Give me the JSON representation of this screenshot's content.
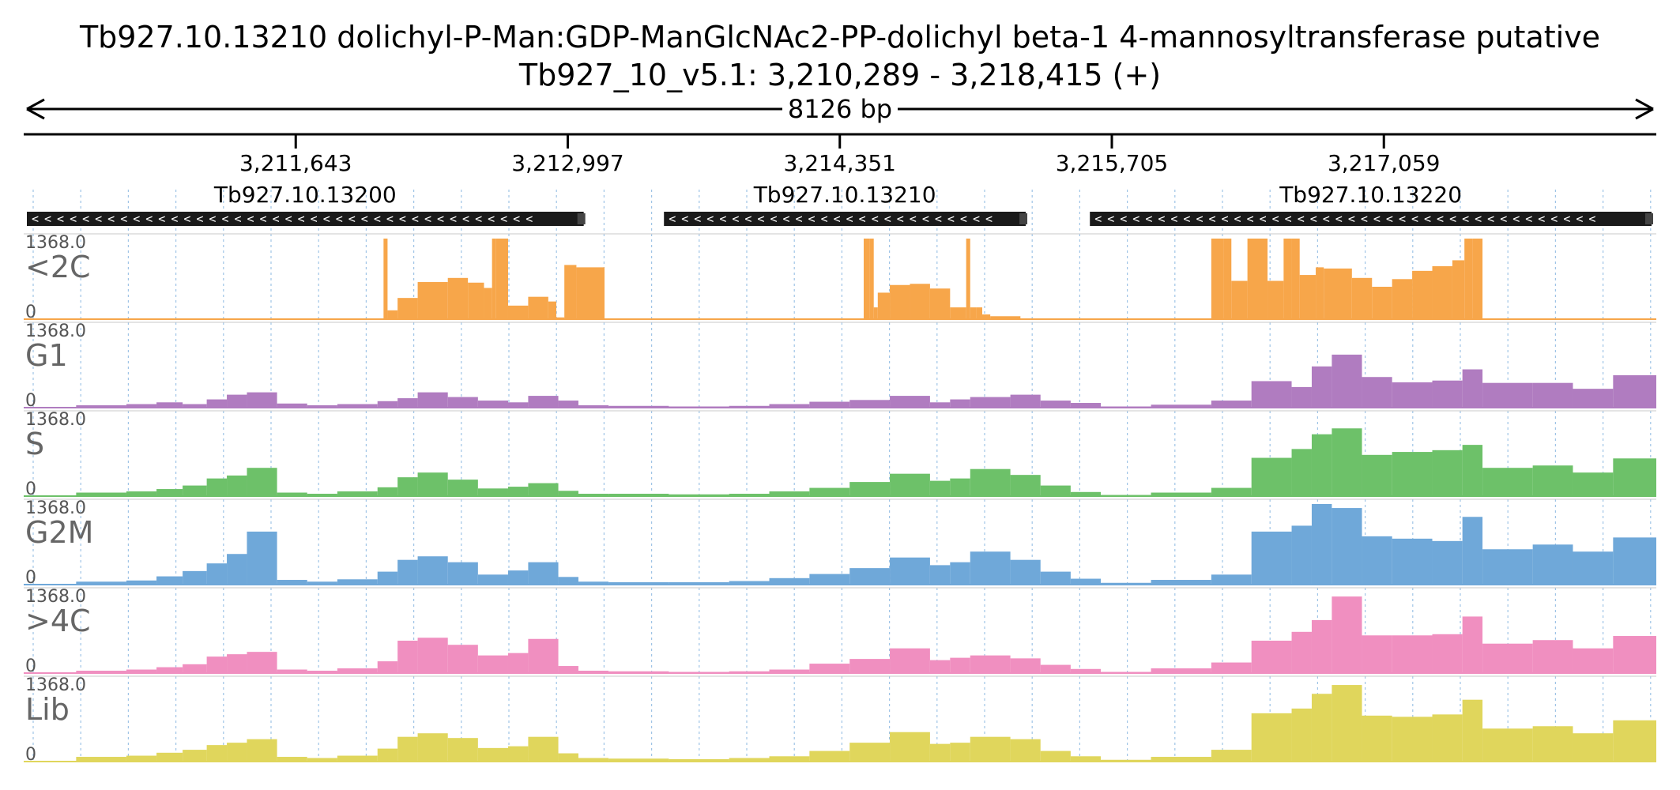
{
  "header": {
    "title": "Tb927.10.13210  dolichyl-P-Man:GDP-ManGlcNAc2-PP-dolichyl beta-1 4-mannosyltransferase  putative",
    "locus": "Tb927_10_v5.1: 3,210,289 - 3,218,415 (+)",
    "span_label": "8126 bp"
  },
  "axis": {
    "start": 3210289,
    "end": 3218415,
    "ticks": [
      {
        "value": 3211643,
        "label": "3,211,643"
      },
      {
        "value": 3212997,
        "label": "3,212,997"
      },
      {
        "value": 3214351,
        "label": "3,214,351"
      },
      {
        "value": 3215705,
        "label": "3,215,705"
      },
      {
        "value": 3217059,
        "label": "3,217,059"
      }
    ]
  },
  "genes": [
    {
      "name": "Tb927.10.13200",
      "start": 3210289,
      "end": 3213100,
      "strand": "-"
    },
    {
      "name": "Tb927.10.13210",
      "start": 3213460,
      "end": 3215300,
      "strand": "-"
    },
    {
      "name": "Tb927.10.13220",
      "start": 3215580,
      "end": 3218415,
      "strand": "-"
    }
  ],
  "chart_data": {
    "type": "area",
    "title": "Tb927.10.13210  dolichyl-P-Man:GDP-ManGlcNAc2-PP-dolichyl beta-1 4-mannosyltransferase  putative",
    "xlabel": "Tb927_10_v5.1: 3,210,289 - 3,218,415 (+)",
    "xlim": [
      3210289,
      3218415
    ],
    "ylim": [
      0,
      1368.0
    ],
    "grid": true,
    "tracks": [
      {
        "name": "<2C",
        "max_label": "1368.0",
        "min_label": "0",
        "color": "#f7a64a",
        "x": [
          3210289,
          3212080,
          3212100,
          3212150,
          3212250,
          3212400,
          3212500,
          3212580,
          3212620,
          3212640,
          3212700,
          3212800,
          3212900,
          3212940,
          3212980,
          3213040,
          3213180,
          3214470,
          3214500,
          3214520,
          3214540,
          3214600,
          3214700,
          3214800,
          3214900,
          3214980,
          3215000,
          3215030,
          3215060,
          3215100,
          3215250,
          3215350,
          3216200,
          3216260,
          3216300,
          3216380,
          3216480,
          3216560,
          3216600,
          3216640,
          3216720,
          3216760,
          3216900,
          3217000,
          3217100,
          3217200,
          3217300,
          3217400,
          3217460,
          3217500,
          3217550,
          3218415
        ],
        "values": [
          0,
          1368,
          150,
          360,
          630,
          700,
          620,
          530,
          1368,
          1368,
          230,
          380,
          300,
          30,
          920,
          880,
          0,
          1368,
          1368,
          200,
          450,
          580,
          600,
          520,
          200,
          1368,
          200,
          200,
          80,
          50,
          0,
          0,
          1368,
          1368,
          650,
          1368,
          650,
          1368,
          1368,
          750,
          880,
          860,
          700,
          550,
          680,
          820,
          900,
          1000,
          1368,
          1368,
          0,
          0
        ]
      },
      {
        "name": "G1",
        "max_label": "1368.0",
        "min_label": "0",
        "color": "#b07cc0",
        "x": [
          3210289,
          3210550,
          3210800,
          3210950,
          3211080,
          3211200,
          3211300,
          3211400,
          3211550,
          3211700,
          3211850,
          3212050,
          3212150,
          3212250,
          3212400,
          3212550,
          3212700,
          3212800,
          3212950,
          3213050,
          3213200,
          3213500,
          3213800,
          3214000,
          3214200,
          3214400,
          3214600,
          3214800,
          3214900,
          3215000,
          3215200,
          3215350,
          3215500,
          3215650,
          3215900,
          3216200,
          3216400,
          3216600,
          3216700,
          3216800,
          3216950,
          3217100,
          3217300,
          3217450,
          3217550,
          3217800,
          3218000,
          3218200,
          3218415
        ],
        "values": [
          0,
          40,
          60,
          90,
          60,
          140,
          220,
          260,
          70,
          40,
          60,
          110,
          160,
          260,
          180,
          120,
          90,
          200,
          120,
          40,
          30,
          20,
          30,
          60,
          100,
          130,
          200,
          90,
          140,
          180,
          220,
          120,
          80,
          20,
          50,
          120,
          450,
          350,
          700,
          900,
          520,
          430,
          460,
          650,
          420,
          420,
          320,
          550,
          600
        ]
      },
      {
        "name": "S",
        "max_label": "1368.0",
        "min_label": "0",
        "color": "#6dc169",
        "x": [
          3210289,
          3210550,
          3210800,
          3210950,
          3211080,
          3211200,
          3211300,
          3211400,
          3211550,
          3211700,
          3211850,
          3212050,
          3212150,
          3212250,
          3212400,
          3212550,
          3212700,
          3212800,
          3212950,
          3213050,
          3213200,
          3213500,
          3213800,
          3214000,
          3214200,
          3214400,
          3214600,
          3214800,
          3214900,
          3215000,
          3215200,
          3215350,
          3215500,
          3215650,
          3215900,
          3216200,
          3216400,
          3216600,
          3216700,
          3216800,
          3216950,
          3217100,
          3217300,
          3217450,
          3217550,
          3217800,
          3218000,
          3218200,
          3218415
        ],
        "values": [
          0,
          60,
          80,
          120,
          180,
          300,
          350,
          480,
          60,
          40,
          80,
          150,
          320,
          400,
          280,
          130,
          160,
          220,
          90,
          40,
          40,
          30,
          40,
          80,
          140,
          240,
          380,
          260,
          300,
          460,
          360,
          180,
          70,
          20,
          60,
          140,
          650,
          800,
          1050,
          1150,
          700,
          750,
          780,
          870,
          480,
          520,
          400,
          640,
          700
        ]
      },
      {
        "name": "G2M",
        "max_label": "1368.0",
        "min_label": "0",
        "color": "#6fa8d9",
        "x": [
          3210289,
          3210550,
          3210800,
          3210950,
          3211080,
          3211200,
          3211300,
          3211400,
          3211550,
          3211700,
          3211850,
          3212050,
          3212150,
          3212250,
          3212400,
          3212550,
          3212700,
          3212800,
          3212950,
          3213050,
          3213200,
          3213500,
          3213800,
          3214000,
          3214200,
          3214400,
          3214600,
          3214800,
          3214900,
          3215000,
          3215200,
          3215350,
          3215500,
          3215650,
          3215900,
          3216200,
          3216400,
          3216600,
          3216700,
          3216800,
          3216950,
          3217100,
          3217300,
          3217450,
          3217550,
          3217800,
          3218000,
          3218200,
          3218415
        ],
        "values": [
          0,
          50,
          70,
          140,
          230,
          360,
          520,
          900,
          80,
          50,
          90,
          220,
          420,
          480,
          380,
          170,
          240,
          380,
          130,
          50,
          40,
          40,
          60,
          110,
          180,
          280,
          460,
          330,
          380,
          560,
          420,
          220,
          100,
          30,
          80,
          170,
          900,
          1000,
          1368,
          1300,
          820,
          780,
          740,
          1150,
          600,
          680,
          560,
          800,
          860
        ]
      },
      {
        "name": ">4C",
        "max_label": "1368.0",
        "min_label": "0",
        "color": "#f08fc0",
        "x": [
          3210289,
          3210550,
          3210800,
          3210950,
          3211080,
          3211200,
          3211300,
          3211400,
          3211550,
          3211700,
          3211850,
          3212050,
          3212150,
          3212250,
          3212400,
          3212550,
          3212700,
          3212800,
          3212950,
          3213050,
          3213200,
          3213500,
          3213800,
          3214000,
          3214200,
          3214400,
          3214600,
          3214800,
          3214900,
          3215000,
          3215200,
          3215350,
          3215500,
          3215650,
          3215900,
          3216200,
          3216400,
          3216600,
          3216700,
          3216800,
          3216950,
          3217100,
          3217300,
          3217450,
          3217550,
          3217800,
          3218000,
          3218200,
          3218415
        ],
        "values": [
          0,
          40,
          60,
          100,
          150,
          280,
          320,
          360,
          60,
          40,
          80,
          200,
          550,
          600,
          480,
          300,
          340,
          580,
          120,
          40,
          30,
          20,
          30,
          60,
          160,
          240,
          420,
          220,
          260,
          300,
          250,
          140,
          70,
          20,
          80,
          180,
          550,
          700,
          900,
          1300,
          640,
          640,
          660,
          960,
          500,
          560,
          420,
          630,
          620
        ]
      },
      {
        "name": "Lib",
        "max_label": "1368.0",
        "min_label": "0",
        "color": "#e0d65c",
        "x": [
          3210289,
          3210550,
          3210800,
          3210950,
          3211080,
          3211200,
          3211300,
          3211400,
          3211550,
          3211700,
          3211850,
          3212050,
          3212150,
          3212250,
          3212400,
          3212550,
          3212700,
          3212800,
          3212950,
          3213050,
          3213200,
          3213500,
          3213800,
          3214000,
          3214200,
          3214400,
          3214600,
          3214800,
          3214900,
          3215000,
          3215200,
          3215350,
          3215500,
          3215650,
          3215900,
          3216200,
          3216400,
          3216600,
          3216700,
          3216800,
          3216950,
          3217100,
          3217300,
          3217450,
          3217550,
          3217800,
          3218000,
          3218200,
          3218415
        ],
        "values": [
          0,
          80,
          100,
          150,
          200,
          280,
          320,
          380,
          80,
          60,
          100,
          220,
          420,
          480,
          400,
          230,
          260,
          420,
          140,
          60,
          50,
          40,
          60,
          90,
          180,
          320,
          500,
          300,
          320,
          420,
          380,
          180,
          90,
          30,
          80,
          200,
          820,
          900,
          1150,
          1300,
          780,
          760,
          800,
          1050,
          560,
          600,
          480,
          700,
          720
        ]
      }
    ]
  }
}
